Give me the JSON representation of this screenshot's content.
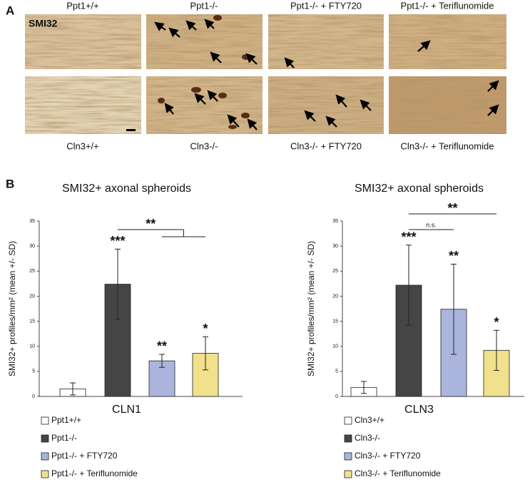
{
  "panel_a": {
    "label": "A",
    "stain": "SMI32",
    "top_labels": [
      "Ppt1+/+",
      "Ppt1-/-",
      "Ppt1-/-  + FTY720",
      "Ppt1-/-  + Teriflunomide"
    ],
    "bottom_labels": [
      "Cln3+/+",
      "Cln3-/-",
      "Cln3-/-  + FTY720",
      "Cln3-/-  + Teriflunomide"
    ]
  },
  "panel_b_label": "B",
  "chart_data": [
    {
      "type": "bar",
      "title": "SMI32+ axonal spheroids",
      "y_label": "SMI32+ profiles/mm² (mean +/- SD)",
      "x_label": "CLN1",
      "categories": [
        "Ppt1+/+",
        "Ppt1-/-",
        "Ppt1-/-  + FTY720",
        "Ppt1-/-  + Teriflunomide"
      ],
      "values": [
        1.5,
        22.4,
        7.1,
        8.6
      ],
      "errors": [
        1.2,
        7.0,
        1.3,
        3.3
      ],
      "colors": [
        "#ffffff",
        "#454545",
        "#aab4dc",
        "#f1e08c"
      ],
      "annotations": [
        null,
        "***",
        "**",
        "*"
      ],
      "comparisons": [
        {
          "label": "**",
          "groups": [
            1,
            2,
            3
          ]
        }
      ],
      "ylim": [
        0,
        35
      ],
      "yticks": [
        0,
        5,
        10,
        15,
        20,
        25,
        30,
        35
      ],
      "grid": false
    },
    {
      "type": "bar",
      "title": "SMI32+ axonal spheroids",
      "y_label": "SMI32+ profiles/mm² (mean +/- SD)",
      "x_label": "CLN3",
      "categories": [
        "Cln3+/+",
        "Cln3-/-",
        "Cln3-/-  + FTY720",
        "Cln3-/-  + Teriflunomide"
      ],
      "values": [
        1.8,
        22.2,
        17.4,
        9.2
      ],
      "errors": [
        1.2,
        8.0,
        9.0,
        4.0
      ],
      "colors": [
        "#ffffff",
        "#454545",
        "#aab4dc",
        "#f1e08c"
      ],
      "annotations": [
        null,
        "***",
        "**",
        "*"
      ],
      "comparisons": [
        {
          "label": "n.s.",
          "groups": [
            1,
            2
          ]
        },
        {
          "label": "**",
          "groups": [
            1,
            3
          ]
        }
      ],
      "ylim": [
        0,
        35
      ],
      "yticks": [
        0,
        5,
        10,
        15,
        20,
        25,
        30,
        35
      ],
      "grid": false
    }
  ]
}
